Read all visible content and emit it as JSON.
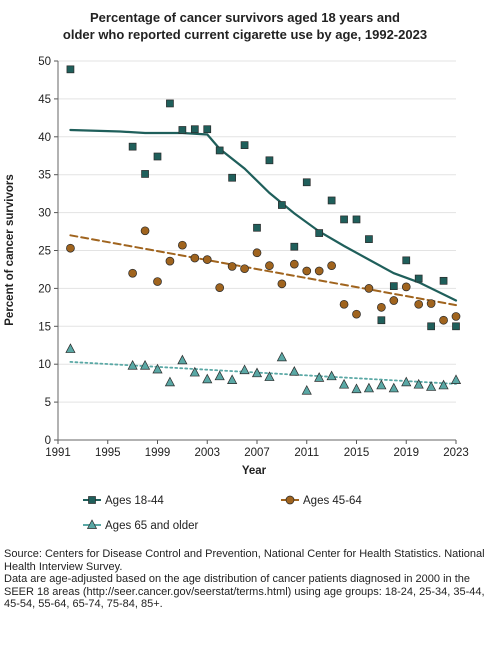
{
  "chart_data": {
    "type": "scatter",
    "title_lines": [
      "Percentage of cancer survivors aged 18 years and",
      "older who reported current cigarette use by age, 1992-2023"
    ],
    "xlabel": "Year",
    "ylabel": "Percent of cancer survivors",
    "xlim": [
      1991,
      2023
    ],
    "ylim": [
      0,
      50
    ],
    "x_ticks": [
      1991,
      1995,
      1999,
      2003,
      2007,
      2011,
      2015,
      2019,
      2023
    ],
    "y_ticks": [
      0,
      5,
      10,
      15,
      20,
      25,
      30,
      35,
      40,
      45,
      50
    ],
    "grid": "horizontal",
    "legend_position": "bottom",
    "series": [
      {
        "name": "Ages 18-44",
        "color": "#1f5f5b",
        "marker": "square",
        "points": [
          [
            1992,
            48.9
          ],
          [
            1997,
            38.7
          ],
          [
            1998,
            35.1
          ],
          [
            1999,
            37.4
          ],
          [
            2000,
            44.4
          ],
          [
            2001,
            40.9
          ],
          [
            2002,
            41.0
          ],
          [
            2003,
            41.0
          ],
          [
            2004,
            38.2
          ],
          [
            2005,
            34.6
          ],
          [
            2006,
            38.9
          ],
          [
            2007,
            28.0
          ],
          [
            2008,
            36.9
          ],
          [
            2009,
            31.0
          ],
          [
            2010,
            25.5
          ],
          [
            2011,
            34.0
          ],
          [
            2012,
            27.3
          ],
          [
            2013,
            31.6
          ],
          [
            2014,
            29.1
          ],
          [
            2015,
            29.1
          ],
          [
            2016,
            26.5
          ],
          [
            2017,
            15.8
          ],
          [
            2018,
            20.3
          ],
          [
            2019,
            23.7
          ],
          [
            2020,
            21.3
          ],
          [
            2021,
            15.0
          ],
          [
            2022,
            21.0
          ],
          [
            2023,
            15.0
          ]
        ],
        "trend": {
          "style": "solid",
          "points": [
            [
              1992,
              40.9
            ],
            [
              1996,
              40.7
            ],
            [
              1998,
              40.5
            ],
            [
              2001,
              40.5
            ],
            [
              2003,
              40.3
            ],
            [
              2004,
              38.4
            ],
            [
              2006,
              35.8
            ],
            [
              2008,
              32.6
            ],
            [
              2010,
              29.9
            ],
            [
              2012,
              27.5
            ],
            [
              2014,
              25.6
            ],
            [
              2016,
              23.8
            ],
            [
              2018,
              22.0
            ],
            [
              2020,
              20.8
            ],
            [
              2023,
              18.4
            ]
          ]
        }
      },
      {
        "name": "Ages 45-64",
        "color": "#a0641e",
        "marker": "circle",
        "points": [
          [
            1992,
            25.3
          ],
          [
            1997,
            22.0
          ],
          [
            1998,
            27.6
          ],
          [
            1999,
            20.9
          ],
          [
            2000,
            23.6
          ],
          [
            2001,
            25.7
          ],
          [
            2002,
            24.0
          ],
          [
            2003,
            23.8
          ],
          [
            2004,
            20.1
          ],
          [
            2005,
            22.9
          ],
          [
            2006,
            22.6
          ],
          [
            2007,
            24.7
          ],
          [
            2008,
            23.0
          ],
          [
            2009,
            20.6
          ],
          [
            2010,
            23.2
          ],
          [
            2011,
            22.3
          ],
          [
            2012,
            22.3
          ],
          [
            2013,
            23.0
          ],
          [
            2014,
            17.9
          ],
          [
            2015,
            16.6
          ],
          [
            2016,
            20.0
          ],
          [
            2017,
            17.5
          ],
          [
            2018,
            18.4
          ],
          [
            2019,
            20.2
          ],
          [
            2020,
            17.9
          ],
          [
            2021,
            18.0
          ],
          [
            2022,
            15.8
          ],
          [
            2023,
            16.3
          ]
        ],
        "trend": {
          "style": "dashed",
          "points": [
            [
              1992,
              27.0
            ],
            [
              2023,
              17.8
            ]
          ]
        }
      },
      {
        "name": "Ages 65 and older",
        "color": "#5aa8a5",
        "marker": "triangle",
        "points": [
          [
            1992,
            12.0
          ],
          [
            1997,
            9.8
          ],
          [
            1998,
            9.8
          ],
          [
            1999,
            9.3
          ],
          [
            2000,
            7.6
          ],
          [
            2001,
            10.5
          ],
          [
            2002,
            8.9
          ],
          [
            2003,
            8.0
          ],
          [
            2004,
            8.4
          ],
          [
            2005,
            7.9
          ],
          [
            2006,
            9.2
          ],
          [
            2007,
            8.8
          ],
          [
            2008,
            8.3
          ],
          [
            2009,
            10.9
          ],
          [
            2010,
            9.0
          ],
          [
            2011,
            6.5
          ],
          [
            2012,
            8.2
          ],
          [
            2013,
            8.4
          ],
          [
            2014,
            7.3
          ],
          [
            2015,
            6.7
          ],
          [
            2016,
            6.8
          ],
          [
            2017,
            7.2
          ],
          [
            2018,
            6.8
          ],
          [
            2019,
            7.6
          ],
          [
            2020,
            7.3
          ],
          [
            2021,
            7.0
          ],
          [
            2022,
            7.2
          ],
          [
            2023,
            7.9
          ]
        ],
        "trend": {
          "style": "dotted",
          "points": [
            [
              1992,
              10.3
            ],
            [
              2023,
              7.4
            ]
          ]
        }
      }
    ]
  },
  "footnote": {
    "source": "Source: Centers for Disease Control and Prevention, National Center for Health Statistics. National Health Interview Survey.",
    "note": "Data are age-adjusted based on the age distribution of cancer patients diagnosed in 2000 in the SEER 18 areas (http://seer.cancer.gov/seerstat/terms.html) using age groups: 18-24, 25-34, 35-44, 45-54, 55-64, 65-74, 75-84, 85+."
  }
}
